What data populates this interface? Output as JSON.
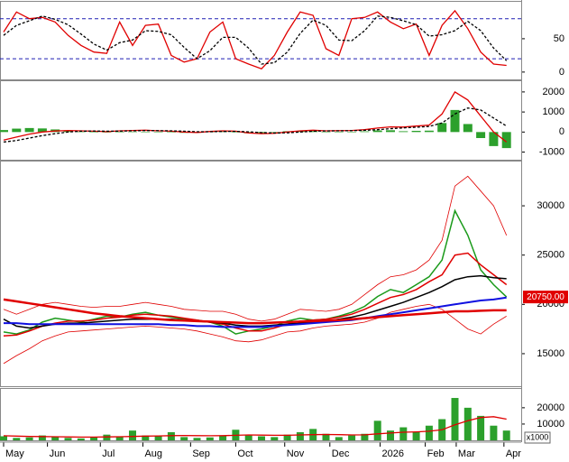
{
  "chart_data": [
    {
      "type": "line",
      "ylim": [
        -11,
        104
      ],
      "yticks": [
        0,
        50
      ],
      "hlines": [
        20,
        80
      ],
      "hline_color": "#1f1fb4",
      "series": [
        {
          "color": "#e00000",
          "values": [
            60,
            90,
            80,
            82,
            75,
            55,
            40,
            30,
            28,
            75,
            40,
            70,
            72,
            25,
            15,
            20,
            60,
            75,
            20,
            12,
            5,
            25,
            60,
            90,
            85,
            35,
            25,
            80,
            82,
            90,
            75,
            65,
            72,
            25,
            70,
            92,
            65,
            30,
            12,
            10
          ]
        },
        {
          "color": "#000000",
          "dashed": true,
          "values": [
            55,
            70,
            77,
            84,
            79,
            71,
            57,
            42,
            33,
            44,
            48,
            62,
            61,
            56,
            37,
            20,
            32,
            52,
            52,
            36,
            12,
            14,
            30,
            58,
            78,
            70,
            48,
            47,
            62,
            84,
            82,
            77,
            71,
            54,
            56,
            62,
            76,
            62,
            36,
            17
          ]
        }
      ]
    },
    {
      "type": "line",
      "ylim": [
        -1380,
        2490
      ],
      "yticks": [
        -1000,
        0,
        1000,
        2000
      ],
      "histogram": {
        "color": "#2ca02c",
        "values": [
          100,
          170,
          200,
          180,
          130,
          80,
          20,
          -10,
          -20,
          15,
          20,
          15,
          -10,
          -20,
          -40,
          -35,
          15,
          30,
          5,
          -60,
          -50,
          -10,
          40,
          60,
          50,
          5,
          10,
          12,
          35,
          80,
          90,
          40,
          60,
          70,
          450,
          1100,
          400,
          -300,
          -700,
          -800
        ]
      },
      "series": [
        {
          "color": "#e00000",
          "values": [
            -400,
            -250,
            -100,
            0,
            50,
            80,
            60,
            40,
            20,
            60,
            80,
            90,
            60,
            40,
            0,
            -20,
            30,
            60,
            40,
            -50,
            -80,
            -60,
            0,
            60,
            90,
            60,
            70,
            80,
            120,
            200,
            260,
            250,
            300,
            350,
            900,
            2000,
            1600,
            800,
            0,
            -500
          ]
        },
        {
          "color": "#000000",
          "dashed": true,
          "values": [
            -500,
            -420,
            -300,
            -180,
            -80,
            0,
            40,
            50,
            40,
            45,
            60,
            75,
            70,
            60,
            40,
            15,
            15,
            30,
            35,
            10,
            -30,
            -50,
            -40,
            0,
            40,
            55,
            60,
            68,
            85,
            120,
            170,
            210,
            240,
            280,
            450,
            900,
            1200,
            1100,
            700,
            300
          ]
        }
      ]
    },
    {
      "type": "line",
      "ylim": [
        11700,
        34400
      ],
      "yticks": [
        15000,
        20000,
        25000,
        30000
      ],
      "last_price": {
        "value": 20750,
        "label": "20750.00"
      },
      "last_price_color": "#e00000",
      "series": [
        {
          "color": "#1a9a1a",
          "width": 1.5,
          "values": [
            17200,
            17000,
            17400,
            18200,
            18600,
            18400,
            18200,
            18500,
            18800,
            18700,
            19000,
            19200,
            18900,
            18700,
            18500,
            18400,
            18200,
            17800,
            17000,
            17300,
            17500,
            17800,
            18300,
            18600,
            18400,
            18500,
            18800,
            19200,
            19800,
            20800,
            21500,
            21200,
            22000,
            22800,
            24500,
            29500,
            27000,
            23500,
            22000,
            20750
          ]
        },
        {
          "color": "#e00000",
          "width": 0.8,
          "values": [
            19500,
            19000,
            19500,
            20000,
            20200,
            20000,
            19800,
            19700,
            19800,
            19800,
            20000,
            20200,
            20000,
            19800,
            19500,
            19400,
            19300,
            19300,
            19000,
            18500,
            18300,
            18500,
            19000,
            19500,
            19400,
            19300,
            19500,
            20000,
            21000,
            22000,
            22800,
            23000,
            23500,
            24500,
            26500,
            32000,
            33000,
            31500,
            30000,
            27000
          ]
        },
        {
          "color": "#e00000",
          "width": 0.8,
          "values": [
            14000,
            14800,
            15500,
            16300,
            16800,
            17200,
            17300,
            17400,
            17500,
            17600,
            17700,
            17800,
            17700,
            17600,
            17500,
            17300,
            17000,
            16700,
            16300,
            16200,
            16400,
            16800,
            17200,
            17300,
            17600,
            17800,
            17900,
            18000,
            18200,
            18600,
            19200,
            19500,
            19800,
            20000,
            19500,
            18500,
            17500,
            17000,
            18000,
            18800
          ]
        },
        {
          "color": "#e00000",
          "width": 1.5,
          "values": [
            16800,
            16900,
            17300,
            17800,
            18100,
            18300,
            18300,
            18400,
            18600,
            18700,
            18900,
            19000,
            18900,
            18800,
            18600,
            18400,
            18200,
            18000,
            17600,
            17300,
            17300,
            17600,
            18000,
            18300,
            18400,
            18500,
            18700,
            19000,
            19500,
            20100,
            20700,
            21000,
            21500,
            22300,
            23000,
            25000,
            25200,
            24000,
            23000,
            22000
          ]
        },
        {
          "color": "#000000",
          "width": 1.5,
          "values": [
            18500,
            17800,
            17600,
            17800,
            18000,
            18100,
            18100,
            18200,
            18300,
            18400,
            18500,
            18500,
            18500,
            18500,
            18400,
            18300,
            18200,
            18100,
            17900,
            17800,
            17800,
            17900,
            18000,
            18100,
            18200,
            18300,
            18500,
            18700,
            19000,
            19400,
            19800,
            20200,
            20700,
            21200,
            21800,
            22500,
            22800,
            22900,
            22700,
            22600
          ]
        },
        {
          "color": "#1010e0",
          "width": 2,
          "values": [
            18100,
            18100,
            18000,
            18000,
            18000,
            18000,
            18000,
            18000,
            18000,
            18000,
            18000,
            18000,
            18000,
            17900,
            17900,
            17800,
            17800,
            17700,
            17700,
            17700,
            17700,
            17800,
            17900,
            18000,
            18100,
            18200,
            18300,
            18400,
            18600,
            18800,
            19000,
            19200,
            19400,
            19600,
            19800,
            20000,
            20200,
            20400,
            20500,
            20700
          ]
        },
        {
          "color": "#e00000",
          "width": 2.5,
          "values": [
            20500,
            20300,
            20100,
            19900,
            19700,
            19500,
            19300,
            19100,
            18950,
            18800,
            18700,
            18600,
            18500,
            18400,
            18350,
            18300,
            18250,
            18200,
            18150,
            18100,
            18100,
            18150,
            18200,
            18250,
            18300,
            18350,
            18400,
            18500,
            18600,
            18700,
            18800,
            18900,
            19000,
            19100,
            19200,
            19300,
            19300,
            19350,
            19400,
            19400
          ]
        }
      ]
    },
    {
      "type": "bar",
      "ylim": [
        0,
        31000
      ],
      "yticks": [
        10000,
        20000
      ],
      "unit": "x1000",
      "color": "#2ca02c",
      "values": [
        2500,
        1500,
        1800,
        3000,
        2000,
        1500,
        1200,
        1800,
        3500,
        2500,
        6000,
        3000,
        2500,
        5000,
        2000,
        1500,
        1800,
        3000,
        6500,
        3000,
        2500,
        2000,
        3500,
        5000,
        7000,
        4000,
        2000,
        3000,
        4000,
        12000,
        6000,
        8000,
        5000,
        9000,
        13000,
        26000,
        20000,
        15000,
        9000,
        6000
      ],
      "series": [
        {
          "color": "#e00000",
          "values": [
            2800,
            2600,
            2400,
            2300,
            2200,
            2100,
            2000,
            2000,
            2100,
            2200,
            2400,
            2600,
            2700,
            2900,
            3000,
            2900,
            2800,
            2900,
            3100,
            3300,
            3200,
            3100,
            3100,
            3300,
            3500,
            3600,
            3500,
            3300,
            3400,
            4000,
            4500,
            5000,
            5200,
            5600,
            6500,
            9500,
            12000,
            14000,
            14500,
            13000
          ]
        }
      ],
      "xticks": [
        {
          "value": 0,
          "label": "May"
        },
        {
          "value": 3.4,
          "label": "Jun"
        },
        {
          "value": 7.5,
          "label": "Jul"
        },
        {
          "value": 10.8,
          "label": "Aug"
        },
        {
          "value": 14.5,
          "label": "Sep"
        },
        {
          "value": 18,
          "label": "Oct"
        },
        {
          "value": 21.8,
          "label": "Nov"
        },
        {
          "value": 25.3,
          "label": "Dec"
        },
        {
          "value": 29.2,
          "label": "2026"
        },
        {
          "value": 32.7,
          "label": "Feb"
        },
        {
          "value": 35.1,
          "label": "Mar"
        },
        {
          "value": 38.8,
          "label": "Apr"
        }
      ]
    }
  ]
}
